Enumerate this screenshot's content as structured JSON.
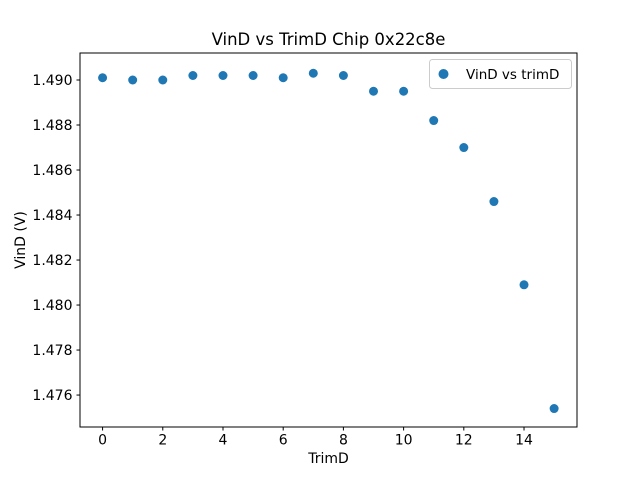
{
  "figure": {
    "background": "#ffffff",
    "spine_color": "#000000"
  },
  "chart_data": {
    "type": "scatter",
    "title": "VinD vs TrimD Chip 0x22c8e",
    "xlabel": "TrimD",
    "ylabel": "VinD (V)",
    "series": [
      {
        "name": "VinD vs trimD",
        "marker": "circle",
        "color": "#1f77b4",
        "x": [
          0,
          1,
          2,
          3,
          4,
          5,
          6,
          7,
          8,
          9,
          10,
          11,
          12,
          13,
          14,
          15
        ],
        "y": [
          1.4901,
          1.49,
          1.49,
          1.4902,
          1.4902,
          1.4902,
          1.4901,
          1.4903,
          1.4902,
          1.4895,
          1.4895,
          1.4882,
          1.487,
          1.4846,
          1.4809,
          1.4754
        ]
      }
    ],
    "xlim": [
      -0.75,
      15.76
    ],
    "ylim": [
      1.47458,
      1.4912
    ],
    "xticks": [
      0,
      2,
      4,
      6,
      8,
      10,
      12,
      14
    ],
    "xtick_labels": [
      "0",
      "2",
      "4",
      "6",
      "8",
      "10",
      "12",
      "14"
    ],
    "yticks": [
      1.476,
      1.478,
      1.48,
      1.482,
      1.484,
      1.486,
      1.488,
      1.49
    ],
    "ytick_labels": [
      "1.476",
      "1.478",
      "1.480",
      "1.482",
      "1.484",
      "1.486",
      "1.488",
      "1.490"
    ],
    "grid": false,
    "legend": {
      "label": "VinD vs trimD",
      "position": "upper right",
      "marker_color": "#1f77b4",
      "edge_color": "#cccccc",
      "face_color": "#ffffff"
    }
  }
}
